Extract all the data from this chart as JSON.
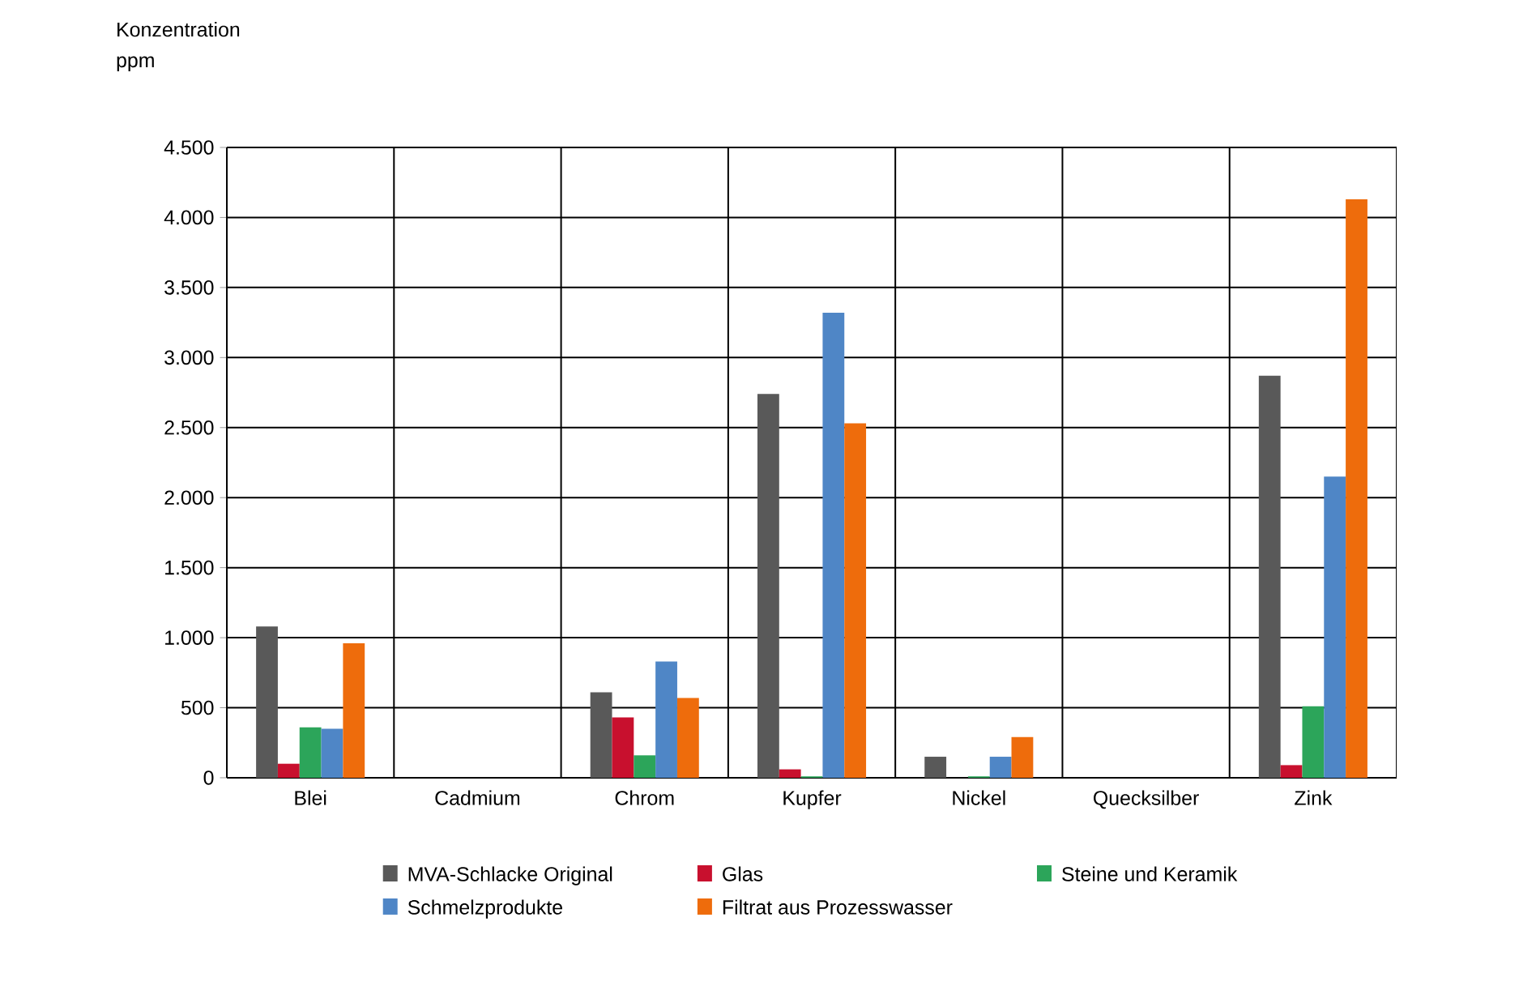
{
  "chart_data": {
    "type": "bar",
    "ylabel": "Konzentration ppm",
    "categories": [
      "Blei",
      "Cadmium",
      "Chrom",
      "Kupfer",
      "Nickel",
      "Quecksilber",
      "Zink"
    ],
    "series": [
      {
        "name": "MVA-Schlacke Original",
        "color": "#595959",
        "values": [
          1080,
          0,
          610,
          2740,
          150,
          0,
          2870
        ]
      },
      {
        "name": "Glas",
        "color": "#c8102e",
        "values": [
          100,
          0,
          430,
          60,
          0,
          0,
          90
        ]
      },
      {
        "name": "Steine und Keramik",
        "color": "#2ca55a",
        "values": [
          360,
          0,
          160,
          10,
          10,
          0,
          510
        ]
      },
      {
        "name": "Schmelzprodukte",
        "color": "#4f86c6",
        "values": [
          350,
          0,
          830,
          3320,
          150,
          0,
          2150
        ]
      },
      {
        "name": "Filtrat aus Prozesswasser",
        "color": "#ee6c0c",
        "values": [
          960,
          0,
          570,
          2530,
          290,
          0,
          4130
        ]
      }
    ],
    "ylim": [
      0,
      4500
    ],
    "yticks": [
      0,
      {
        "value": 500,
        "label": "500"
      },
      {
        "value": 1000,
        "label": "1.000"
      },
      {
        "value": 1500,
        "label": "1.500"
      },
      {
        "value": 2000,
        "label": "2.000"
      },
      {
        "value": 2500,
        "label": "2.500"
      },
      {
        "value": 3000,
        "label": "3.000"
      },
      {
        "value": 3500,
        "label": "3.500"
      },
      {
        "value": 4000,
        "label": "4.000"
      },
      {
        "value": 4500,
        "label": "4.500"
      }
    ],
    "grid": true,
    "legend": "bottom"
  }
}
